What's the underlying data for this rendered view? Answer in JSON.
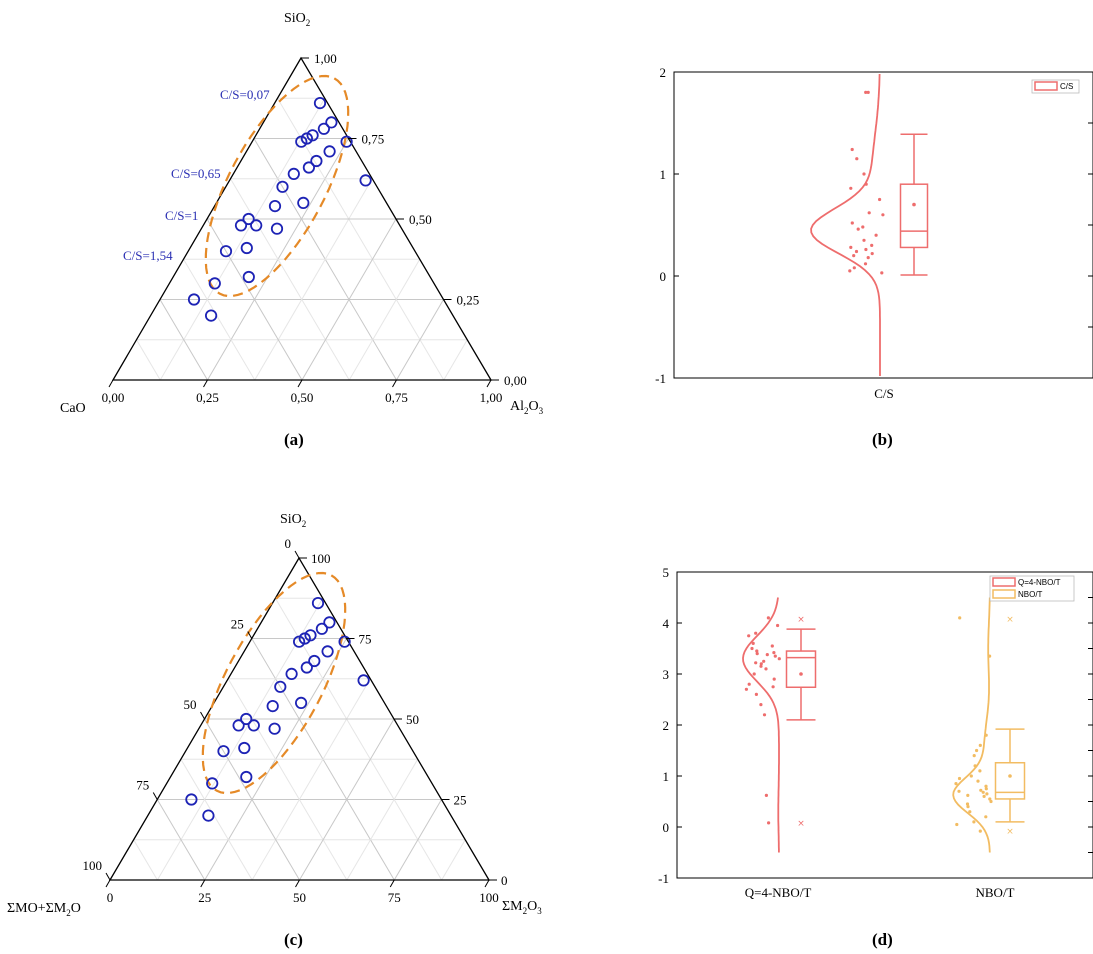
{
  "colors": {
    "red": "#ee6d6d",
    "orange": "#f2bc62",
    "blue": "#1d23b5",
    "dash": "#e58a28",
    "grid": "#d6d6d6"
  },
  "panels": {
    "a": "(a)",
    "b": "(b)",
    "c": "(c)",
    "d": "(d)"
  },
  "chart_data": [
    {
      "id": "a",
      "type": "scatter",
      "subtype": "ternary",
      "vertex_labels": {
        "top": "SiO",
        "top_sub": "2",
        "left": "CaO",
        "right": "Al",
        "right_sub1": "2",
        "right_mid": "O",
        "right_sub2": "3"
      },
      "ticks_bottom": [
        "0,00",
        "0,25",
        "0,50",
        "0,75",
        "1,00"
      ],
      "ticks_right": [
        "1,00",
        "0,75",
        "0,50",
        "0,25",
        "0,00"
      ],
      "annotations": [
        "C/S=0,07",
        "C/S=0,65",
        "C/S=1",
        "C/S=1,54"
      ],
      "points": [
        [
          0.12,
          0.86
        ],
        [
          0.18,
          0.8
        ],
        [
          0.17,
          0.78
        ],
        [
          0.15,
          0.76
        ],
        [
          0.14,
          0.75
        ],
        [
          0.13,
          0.74
        ],
        [
          0.25,
          0.74
        ],
        [
          0.22,
          0.71
        ],
        [
          0.2,
          0.68
        ],
        [
          0.19,
          0.66
        ],
        [
          0.16,
          0.64
        ],
        [
          0.15,
          0.6
        ],
        [
          0.36,
          0.62
        ],
        [
          0.16,
          0.54
        ],
        [
          0.11,
          0.5
        ],
        [
          0.1,
          0.48
        ],
        [
          0.14,
          0.48
        ],
        [
          0.23,
          0.55
        ],
        [
          0.2,
          0.47
        ],
        [
          0.15,
          0.41
        ],
        [
          0.1,
          0.4
        ],
        [
          0.2,
          0.32
        ],
        [
          0.12,
          0.3
        ],
        [
          0.09,
          0.25
        ],
        [
          0.16,
          0.2
        ]
      ]
    },
    {
      "id": "b",
      "type": "box",
      "legend": [
        "C/S"
      ],
      "categories": [
        "C/S"
      ],
      "ylim": [
        -1,
        2
      ],
      "yticks": [
        "-1",
        "0",
        "1",
        "2"
      ],
      "box": {
        "q1": 0.28,
        "median": 0.44,
        "q3": 0.9,
        "min": 0.01,
        "max": 1.39,
        "mean": 0.7
      },
      "raw_points": [
        1.8,
        1.8,
        1.24,
        1.15,
        1.0,
        0.9,
        0.86,
        0.75,
        0.62,
        0.48,
        0.46,
        0.4,
        0.3,
        0.28,
        0.26,
        0.24,
        0.22,
        0.2,
        0.18,
        0.12,
        0.08,
        0.05,
        0.03,
        0.6,
        0.52,
        0.35
      ]
    },
    {
      "id": "c",
      "type": "scatter",
      "subtype": "ternary",
      "vertex_labels": {
        "top": "SiO",
        "top_sub": "2",
        "left_a": "ΣMO+ΣM",
        "left_sub": "2",
        "left_b": "O",
        "right": "ΣM",
        "right_sub1": "2",
        "right_mid": "O",
        "right_sub2": "3"
      },
      "ticks_bottom": [
        "0",
        "25",
        "50",
        "75",
        "100"
      ],
      "ticks_right": [
        "100",
        "75",
        "50",
        "25",
        "0"
      ],
      "ticks_left": [
        "0",
        "25",
        "50",
        "75",
        "100"
      ],
      "points": [
        [
          0.12,
          0.86
        ],
        [
          0.18,
          0.8
        ],
        [
          0.17,
          0.78
        ],
        [
          0.15,
          0.76
        ],
        [
          0.14,
          0.75
        ],
        [
          0.13,
          0.74
        ],
        [
          0.25,
          0.74
        ],
        [
          0.22,
          0.71
        ],
        [
          0.2,
          0.68
        ],
        [
          0.19,
          0.66
        ],
        [
          0.16,
          0.64
        ],
        [
          0.15,
          0.6
        ],
        [
          0.36,
          0.62
        ],
        [
          0.16,
          0.54
        ],
        [
          0.11,
          0.5
        ],
        [
          0.1,
          0.48
        ],
        [
          0.14,
          0.48
        ],
        [
          0.23,
          0.55
        ],
        [
          0.2,
          0.47
        ],
        [
          0.15,
          0.41
        ],
        [
          0.1,
          0.4
        ],
        [
          0.2,
          0.32
        ],
        [
          0.12,
          0.3
        ],
        [
          0.09,
          0.25
        ],
        [
          0.16,
          0.2
        ]
      ]
    },
    {
      "id": "d",
      "type": "box",
      "legend": [
        "Q=4-NBO/T",
        "NBO/T"
      ],
      "categories": [
        "Q=4-NBO/T",
        "NBO/T"
      ],
      "ylim": [
        -1,
        5
      ],
      "yticks": [
        "-1",
        "0",
        "1",
        "2",
        "3",
        "4",
        "5"
      ],
      "series": [
        {
          "name": "Q=4-NBO/T",
          "box": {
            "q1": 2.74,
            "median": 3.32,
            "q3": 3.45,
            "min": 2.1,
            "max": 3.88,
            "mean": 3.0,
            "outliers": [
              4.08,
              0.08
            ]
          },
          "raw_points": [
            4.1,
            3.95,
            3.8,
            3.75,
            3.6,
            3.55,
            3.5,
            3.45,
            3.42,
            3.4,
            3.38,
            3.35,
            3.3,
            3.25,
            3.22,
            3.2,
            3.15,
            3.1,
            3.0,
            2.9,
            2.8,
            2.75,
            2.7,
            2.6,
            2.4,
            2.2,
            0.62,
            0.08
          ]
        },
        {
          "name": "NBO/T",
          "box": {
            "q1": 0.55,
            "median": 0.68,
            "q3": 1.26,
            "min": 0.1,
            "max": 1.92,
            "mean": 1.0,
            "outliers": [
              4.08,
              -0.08
            ]
          },
          "raw_points": [
            4.1,
            3.35,
            1.8,
            1.6,
            1.5,
            1.4,
            1.2,
            1.1,
            1.0,
            0.95,
            0.9,
            0.85,
            0.8,
            0.75,
            0.72,
            0.7,
            0.68,
            0.65,
            0.62,
            0.6,
            0.55,
            0.5,
            0.45,
            0.4,
            0.3,
            0.2,
            0.1,
            0.05,
            -0.08
          ]
        }
      ]
    }
  ]
}
